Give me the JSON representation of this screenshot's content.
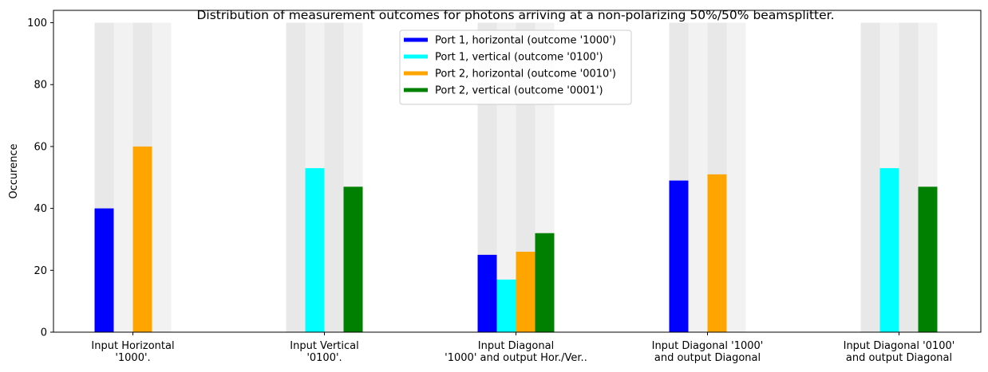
{
  "chart_data": {
    "type": "bar",
    "title": "Distribution of measurement outcomes for photons arriving at a non-polarizing 50%/50% beamsplitter.",
    "xlabel": "",
    "ylabel": "Occurence",
    "ylim": [
      0,
      104
    ],
    "yticks": [
      0,
      20,
      40,
      60,
      80,
      100
    ],
    "grid": false,
    "legend_position": "top-center",
    "background_bar_value": 100,
    "background_colors": [
      "#e8e8e8",
      "#f2f2f2"
    ],
    "categories": [
      [
        "Input Horizontal",
        "'1000'."
      ],
      [
        "Input Vertical",
        "'0100'."
      ],
      [
        "Input Diagonal",
        "'1000' and output Hor./Ver.."
      ],
      [
        "Input Diagonal '1000'",
        "and output Diagonal"
      ],
      [
        "Input Diagonal '0100'",
        "and output Diagonal"
      ]
    ],
    "series": [
      {
        "name": "Port 1, horizontal (outcome '1000')",
        "color": "#0000ff",
        "values": [
          40,
          0,
          25,
          49,
          0
        ]
      },
      {
        "name": "Port 1, vertical (outcome '0100')",
        "color": "#00ffff",
        "values": [
          0,
          53,
          17,
          0,
          53
        ]
      },
      {
        "name": "Port 2, horizontal (outcome '0010')",
        "color": "#ffa500",
        "values": [
          60,
          0,
          26,
          51,
          0
        ]
      },
      {
        "name": "Port 2, vertical (outcome '0001')",
        "color": "#008000",
        "values": [
          0,
          47,
          32,
          0,
          47
        ]
      }
    ]
  }
}
